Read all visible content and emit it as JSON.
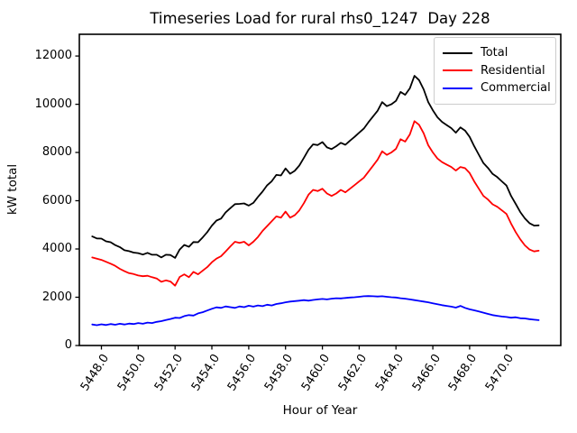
{
  "chart_data": {
    "type": "line",
    "title": "Timeseries Load for rural rhs0_1247  Day 228",
    "xlabel": "Hour of Year",
    "ylabel": "kW total",
    "xlim": [
      5446.8,
      5472.95
    ],
    "ylim": [
      0,
      12900
    ],
    "grid": false,
    "legend_position": "upper right",
    "x0": 5447.5,
    "dx": 0.25,
    "xtick_values": [
      5448,
      5450,
      5452,
      5454,
      5456,
      5458,
      5460,
      5462,
      5464,
      5466,
      5468,
      5470
    ],
    "xtick_labels": [
      "5448.0",
      "5450.0",
      "5452.0",
      "5454.0",
      "5456.0",
      "5458.0",
      "5460.0",
      "5462.0",
      "5464.0",
      "5466.0",
      "5468.0",
      "5470.0"
    ],
    "ytick_values": [
      0,
      2000,
      4000,
      6000,
      8000,
      10000,
      12000
    ],
    "ytick_labels": [
      "0",
      "2000",
      "4000",
      "6000",
      "8000",
      "10000",
      "12000"
    ],
    "axis_color": "#000000",
    "series": [
      {
        "name": "Total",
        "color": "#000000",
        "values": [
          4520,
          4440,
          4430,
          4320,
          4280,
          4160,
          4080,
          3950,
          3910,
          3850,
          3830,
          3770,
          3840,
          3760,
          3760,
          3650,
          3760,
          3750,
          3630,
          3980,
          4170,
          4090,
          4290,
          4280,
          4480,
          4700,
          4970,
          5180,
          5260,
          5520,
          5690,
          5860,
          5870,
          5890,
          5800,
          5910,
          6160,
          6380,
          6640,
          6810,
          7070,
          7050,
          7340,
          7120,
          7240,
          7460,
          7780,
          8110,
          8340,
          8310,
          8430,
          8210,
          8140,
          8260,
          8400,
          8320,
          8490,
          8650,
          8820,
          8990,
          9250,
          9490,
          9730,
          10090,
          9920,
          10000,
          10140,
          10510,
          10390,
          10660,
          11180,
          11000,
          10620,
          10090,
          9750,
          9460,
          9270,
          9140,
          9010,
          8820,
          9040,
          8910,
          8650,
          8260,
          7910,
          7560,
          7360,
          7110,
          6980,
          6800,
          6630,
          6200,
          5870,
          5530,
          5270,
          5070,
          4970,
          4980
        ]
      },
      {
        "name": "Residential",
        "color": "#ff0000",
        "values": [
          3650,
          3600,
          3550,
          3470,
          3390,
          3300,
          3180,
          3080,
          3000,
          2960,
          2900,
          2870,
          2890,
          2830,
          2780,
          2640,
          2700,
          2650,
          2480,
          2840,
          2950,
          2830,
          3050,
          2950,
          3100,
          3250,
          3450,
          3600,
          3700,
          3900,
          4100,
          4300,
          4250,
          4300,
          4150,
          4300,
          4500,
          4750,
          4950,
          5150,
          5350,
          5300,
          5550,
          5300,
          5400,
          5600,
          5900,
          6250,
          6450,
          6400,
          6500,
          6300,
          6200,
          6300,
          6450,
          6350,
          6500,
          6650,
          6800,
          6950,
          7200,
          7450,
          7700,
          8050,
          7900,
          8000,
          8150,
          8550,
          8450,
          8750,
          9300,
          9150,
          8800,
          8300,
          8000,
          7750,
          7600,
          7500,
          7400,
          7250,
          7400,
          7350,
          7150,
          6800,
          6500,
          6200,
          6050,
          5850,
          5750,
          5600,
          5450,
          5050,
          4700,
          4400,
          4150,
          3980,
          3900,
          3930
        ]
      },
      {
        "name": "Commercial",
        "color": "#0000ff",
        "values": [
          870,
          840,
          880,
          850,
          890,
          860,
          900,
          870,
          910,
          890,
          930,
          900,
          950,
          930,
          980,
          1010,
          1060,
          1100,
          1150,
          1140,
          1220,
          1260,
          1240,
          1330,
          1380,
          1450,
          1520,
          1580,
          1560,
          1620,
          1590,
          1560,
          1620,
          1590,
          1650,
          1610,
          1660,
          1630,
          1690,
          1660,
          1720,
          1750,
          1790,
          1820,
          1840,
          1860,
          1880,
          1860,
          1890,
          1910,
          1930,
          1910,
          1940,
          1960,
          1950,
          1970,
          1990,
          2000,
          2020,
          2040,
          2050,
          2040,
          2030,
          2040,
          2020,
          2000,
          1990,
          1960,
          1940,
          1910,
          1880,
          1850,
          1820,
          1790,
          1750,
          1710,
          1670,
          1640,
          1610,
          1570,
          1640,
          1560,
          1500,
          1460,
          1410,
          1360,
          1310,
          1260,
          1230,
          1200,
          1180,
          1150,
          1170,
          1130,
          1120,
          1090,
          1070,
          1050
        ]
      }
    ]
  }
}
